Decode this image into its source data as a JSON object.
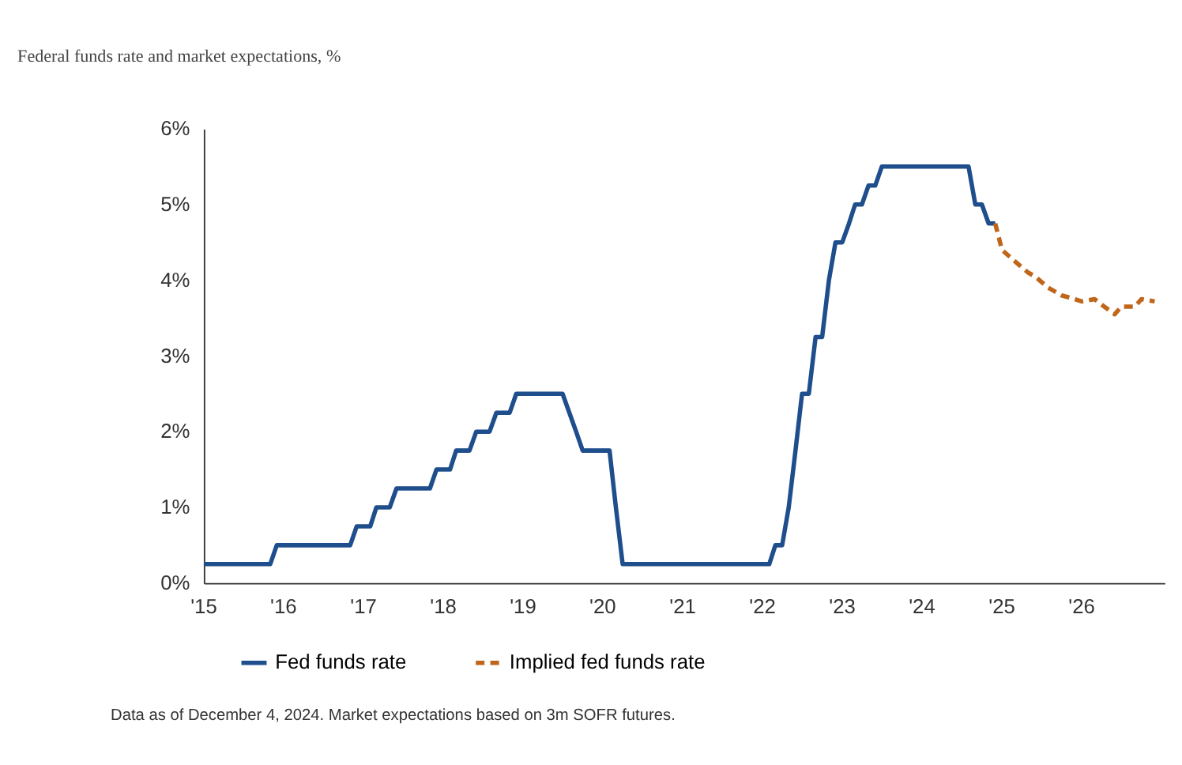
{
  "chart_data": {
    "type": "line",
    "title": "Federal funds rate and market expectations, %",
    "annotations": [
      "Data as of December 4, 2024. Market expectations based on 3m SOFR futures."
    ],
    "series": [
      {
        "name": "Fed funds rate",
        "color": "#1f4e8c",
        "line_style": "solid",
        "x": [
          "2015-01-01",
          "2015-11-01",
          "2015-12-01",
          "2016-11-01",
          "2016-12-01",
          "2017-02-01",
          "2017-03-01",
          "2017-05-01",
          "2017-06-01",
          "2017-11-01",
          "2017-12-01",
          "2018-02-01",
          "2018-03-01",
          "2018-05-01",
          "2018-06-01",
          "2018-08-01",
          "2018-09-01",
          "2018-11-01",
          "2018-12-01",
          "2019-07-01",
          "2019-08-01",
          "2019-09-01",
          "2019-10-01",
          "2020-02-01",
          "2020-03-01",
          "2020-04-01",
          "2022-02-01",
          "2022-03-01",
          "2022-04-01",
          "2022-05-01",
          "2022-06-01",
          "2022-07-01",
          "2022-08-01",
          "2022-09-01",
          "2022-10-01",
          "2022-11-01",
          "2022-12-01",
          "2023-01-01",
          "2023-02-01",
          "2023-03-01",
          "2023-04-01",
          "2023-05-01",
          "2023-06-01",
          "2023-07-01",
          "2024-08-01",
          "2024-09-01",
          "2024-10-01",
          "2024-11-01",
          "2024-12-01"
        ],
        "values": [
          0.25,
          0.25,
          0.5,
          0.5,
          0.75,
          0.75,
          1.0,
          1.0,
          1.25,
          1.25,
          1.5,
          1.5,
          1.75,
          1.75,
          2.0,
          2.0,
          2.25,
          2.25,
          2.5,
          2.5,
          2.25,
          2.0,
          1.75,
          1.75,
          1.0,
          0.25,
          0.25,
          0.5,
          0.5,
          1.0,
          1.75,
          2.5,
          2.5,
          3.25,
          3.25,
          4.0,
          4.5,
          4.5,
          4.75,
          5.0,
          5.0,
          5.25,
          5.25,
          5.5,
          5.5,
          5.0,
          5.0,
          4.75,
          4.75
        ]
      },
      {
        "name": "Implied fed funds rate",
        "color": "#c0661a",
        "line_style": "dashed",
        "x": [
          "2024-12-01",
          "2025-01-01",
          "2025-03-01",
          "2025-05-01",
          "2025-06-01",
          "2025-08-01",
          "2025-10-01",
          "2025-12-01",
          "2026-01-01",
          "2026-03-01",
          "2026-04-01",
          "2026-06-01",
          "2026-07-01",
          "2026-09-01",
          "2026-10-01",
          "2026-12-01"
        ],
        "values": [
          4.75,
          4.4,
          4.25,
          4.1,
          4.05,
          3.9,
          3.8,
          3.75,
          3.72,
          3.75,
          3.68,
          3.55,
          3.65,
          3.65,
          3.75,
          3.72
        ]
      }
    ],
    "xlim": [
      "2015-01-01",
      "2027-01-15"
    ],
    "xticks": [
      {
        "value": "2015-01-01",
        "label": "'15"
      },
      {
        "value": "2016-01-01",
        "label": "'16"
      },
      {
        "value": "2017-01-01",
        "label": "'17"
      },
      {
        "value": "2018-01-01",
        "label": "'18"
      },
      {
        "value": "2019-01-01",
        "label": "'19"
      },
      {
        "value": "2020-01-01",
        "label": "'20"
      },
      {
        "value": "2021-01-01",
        "label": "'21"
      },
      {
        "value": "2022-01-01",
        "label": "'22"
      },
      {
        "value": "2023-01-01",
        "label": "'23"
      },
      {
        "value": "2024-01-01",
        "label": "'24"
      },
      {
        "value": "2025-01-01",
        "label": "'25"
      },
      {
        "value": "2026-01-01",
        "label": "'26"
      }
    ],
    "ylim": [
      0,
      6
    ],
    "yticks": [
      {
        "value": 0,
        "label": "0%"
      },
      {
        "value": 1,
        "label": "1%"
      },
      {
        "value": 2,
        "label": "2%"
      },
      {
        "value": 3,
        "label": "3%"
      },
      {
        "value": 4,
        "label": "4%"
      },
      {
        "value": 5,
        "label": "5%"
      },
      {
        "value": 6,
        "label": "6%"
      }
    ],
    "grid": false,
    "legend": "bottom left",
    "marker": "none"
  }
}
